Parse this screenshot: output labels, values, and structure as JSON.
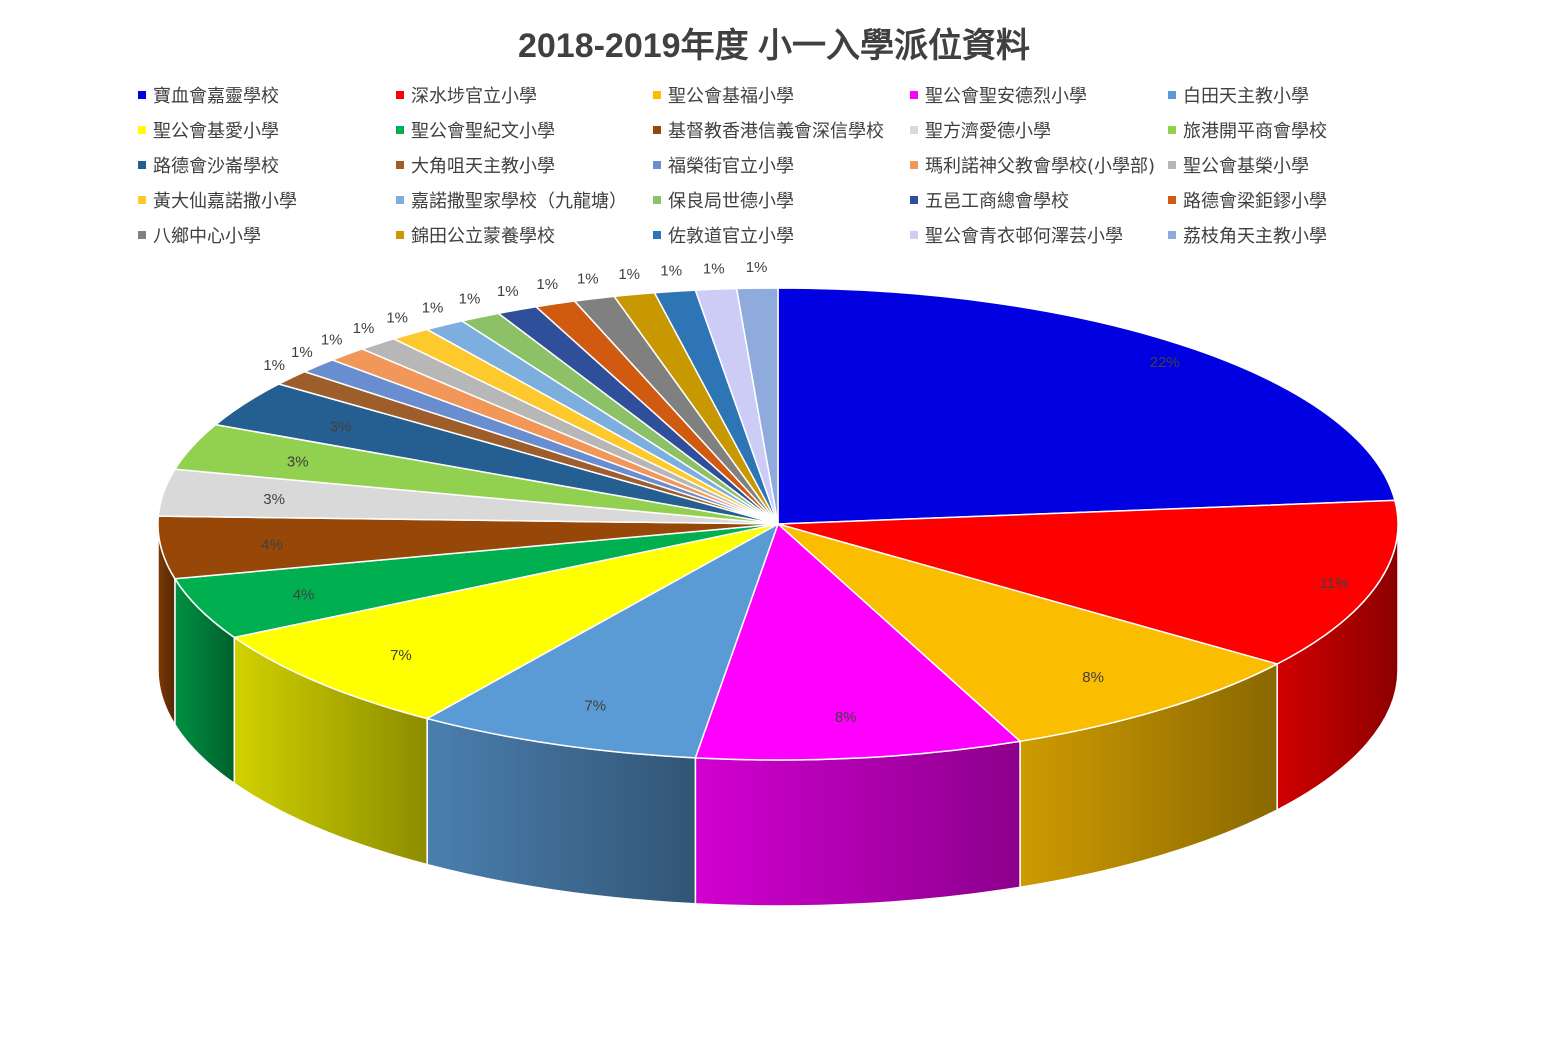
{
  "chart_data": {
    "type": "pie",
    "title": "2018-2019年度 小一入學派位資料",
    "legend_position": "top",
    "categories": [
      "寶血會嘉靈學校",
      "深水埗官立小學",
      "聖公會基福小學",
      "聖公會聖安德烈小學",
      "白田天主教小學",
      "聖公會基愛小學",
      "聖公會聖紀文小學",
      "基督教香港信義會深信學校",
      "聖方濟愛德小學",
      "旅港開平商會學校",
      "路德會沙崙學校",
      "大角咀天主教小學",
      "福榮街官立小學",
      "瑪利諾神父教會學校(小學部)",
      "聖公會基榮小學",
      "黃大仙嘉諾撒小學",
      "嘉諾撒聖家學校（九龍塘）",
      "保良局世德小學",
      "五邑工商總會學校",
      "路德會梁鉅鏐小學",
      "八鄉中心小學",
      "錦田公立蒙養學校",
      "佐敦道官立小學",
      "聖公會青衣邨何澤芸小學",
      "荔枝角天主教小學"
    ],
    "values": [
      22,
      11,
      8,
      8,
      7,
      7,
      4,
      4,
      3,
      3,
      3,
      1,
      1,
      1,
      1,
      1,
      1,
      1,
      1,
      1,
      1,
      1,
      1,
      1,
      1
    ],
    "data_labels": [
      "22%",
      "11%",
      "8%",
      "8%",
      "7%",
      "7%",
      "4%",
      "4%",
      "3%",
      "3%",
      "3%",
      "1%",
      "1%",
      "1%",
      "1%",
      "1%",
      "1%",
      "1%",
      "1%",
      "1%",
      "1%",
      "1%",
      "1%",
      "1%",
      "1%"
    ],
    "colors": [
      "#0000e0",
      "#ff0000",
      "#fbbd00",
      "#ff00ff",
      "#5b9bd5",
      "#ffff00",
      "#00b050",
      "#974708",
      "#d9d9d9",
      "#92d050",
      "#255e91",
      "#9e5e2b",
      "#698ed0",
      "#f1975a",
      "#b7b7b7",
      "#fec92d",
      "#7cafdd",
      "#8cc168",
      "#2f4f9a",
      "#d05a10",
      "#808080",
      "#c89800",
      "#2e75b6",
      "#ccccf6",
      "#8faadc"
    ]
  }
}
